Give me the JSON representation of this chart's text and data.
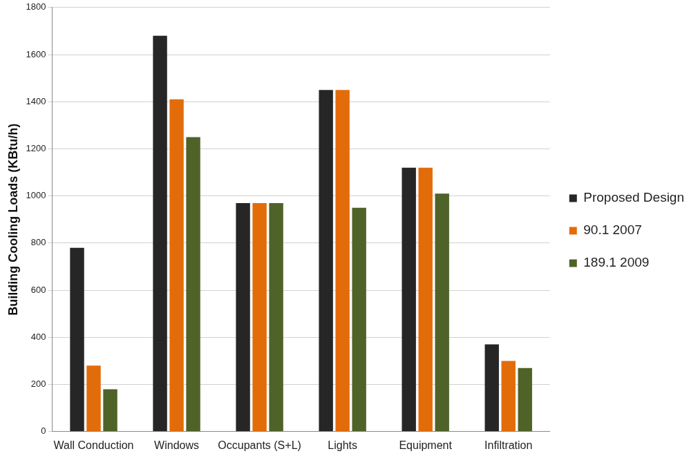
{
  "chart_data": {
    "type": "bar",
    "ylabel": "Building Cooling Loads (KBtu/h)",
    "categories": [
      "Wall Conduction",
      "Windows",
      "Occupants (S+L)",
      "Lights",
      "Equipment",
      "Infiltration"
    ],
    "series": [
      {
        "name": "Proposed Design",
        "color": "#262626",
        "values": [
          780,
          1680,
          970,
          1450,
          1120,
          370
        ]
      },
      {
        "name": "90.1 2007",
        "color": "#e36c0a",
        "values": [
          280,
          1410,
          970,
          1450,
          1120,
          300
        ]
      },
      {
        "name": "189.1 2009",
        "color": "#4f6228",
        "values": [
          180,
          1250,
          970,
          950,
          1010,
          270
        ]
      }
    ],
    "ylim": [
      0,
      1800
    ],
    "yticks": [
      0,
      200,
      400,
      600,
      800,
      1000,
      1200,
      1400,
      1600,
      1800
    ],
    "grid": "y",
    "legend": "right"
  }
}
